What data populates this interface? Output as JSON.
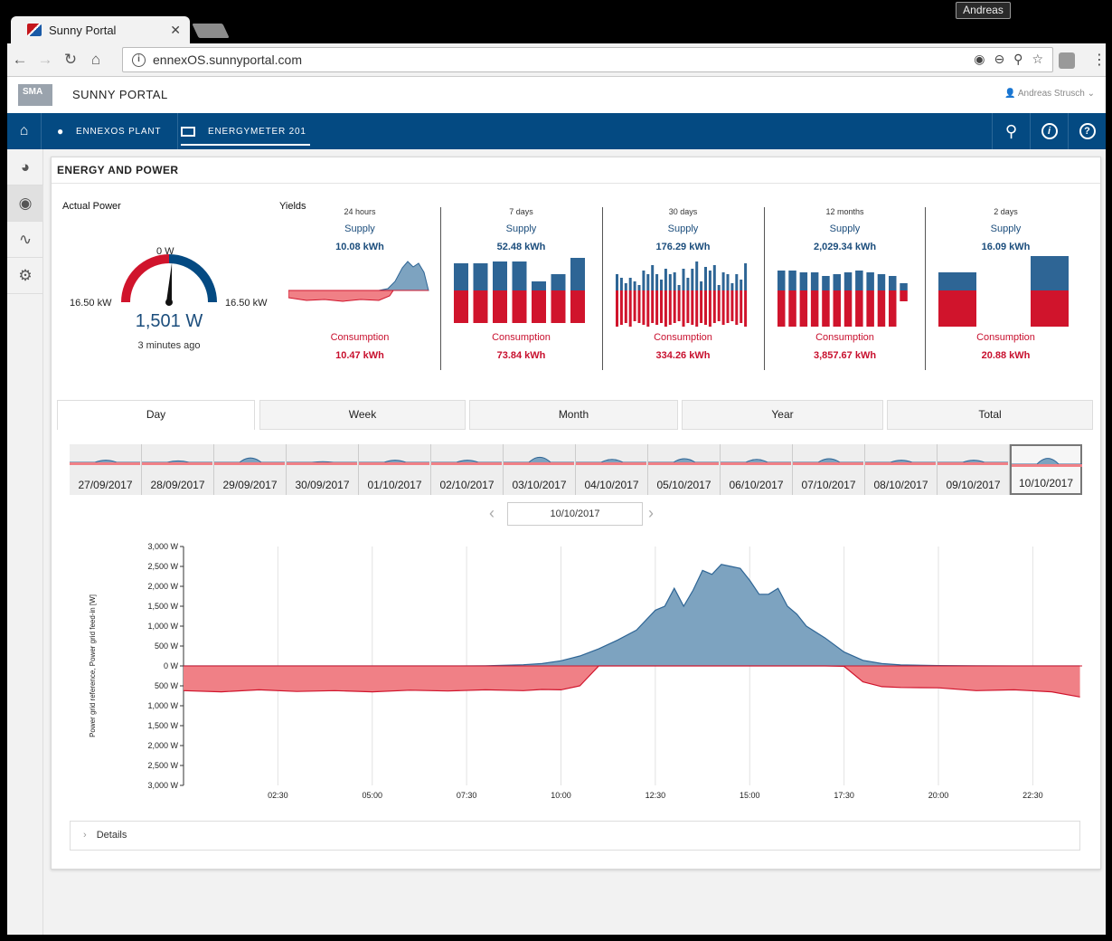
{
  "browser": {
    "tab_title": "Sunny Portal",
    "tab_close": "✕",
    "profile": "Andreas",
    "url": "ennexOS.sunnyportal.com"
  },
  "header": {
    "logo": "SMA",
    "title": "SUNNY PORTAL",
    "user": "Andreas Strusch"
  },
  "navbar": {
    "plant": "ENNEXOS PLANT",
    "device": "ENERGYMETER 201"
  },
  "card": {
    "title": "ENERGY AND POWER",
    "actual_power_label": "Actual Power",
    "yields_label": "Yields"
  },
  "gauge": {
    "zero_label": "0 W",
    "left_label": "16.50 kW",
    "right_label": "16.50 kW",
    "value": "1,501 W",
    "ago": "3 minutes ago",
    "fraction": 0.045
  },
  "yields": [
    {
      "period": "24 hours",
      "supply_label": "Supply",
      "supply": "10.08 kWh",
      "consumption_label": "Consumption",
      "consumption": "10.47 kWh"
    },
    {
      "period": "7 days",
      "supply_label": "Supply",
      "supply": "52.48 kWh",
      "consumption_label": "Consumption",
      "consumption": "73.84 kWh"
    },
    {
      "period": "30 days",
      "supply_label": "Supply",
      "supply": "176.29 kWh",
      "consumption_label": "Consumption",
      "consumption": "334.26 kWh"
    },
    {
      "period": "12 months",
      "supply_label": "Supply",
      "supply": "2,029.34 kWh",
      "consumption_label": "Consumption",
      "consumption": "3,857.67 kWh"
    },
    {
      "period": "2 days",
      "supply_label": "Supply",
      "supply": "16.09 kWh",
      "consumption_label": "Consumption",
      "consumption": "20.88 kWh"
    }
  ],
  "tabs": [
    "Day",
    "Week",
    "Month",
    "Year",
    "Total"
  ],
  "days": [
    "27/09/2017",
    "28/09/2017",
    "29/09/2017",
    "30/09/2017",
    "01/10/2017",
    "02/10/2017",
    "03/10/2017",
    "04/10/2017",
    "05/10/2017",
    "06/10/2017",
    "07/10/2017",
    "08/10/2017",
    "09/10/2017",
    "10/10/2017"
  ],
  "selected_date": "10/10/2017",
  "details_label": "Details",
  "colors": {
    "supply": "#2e6595",
    "supply_fill": "#7da3c0",
    "consumption": "#d0142c",
    "consumption_fill": "#f08086",
    "nav": "#044a82"
  },
  "chart_data": {
    "type": "area",
    "ylabel": "Power grid reference, Power grid feed-in [W]",
    "y_ticks": [
      "3,000 W",
      "2,500 W",
      "2,000 W",
      "1,500 W",
      "1,000 W",
      "500 W",
      "0 W",
      "500 W",
      "1,000 W",
      "1,500 W",
      "2,000 W",
      "2,500 W",
      "3,000 W"
    ],
    "x_ticks": [
      "02:30",
      "05:00",
      "07:30",
      "10:00",
      "12:30",
      "15:00",
      "17:30",
      "20:00",
      "22:30"
    ],
    "ylim": [
      -3000,
      3000
    ],
    "x_hours": [
      0,
      1,
      2,
      3,
      4,
      5,
      6,
      7,
      8,
      9,
      9.5,
      10,
      10.5,
      11,
      11.5,
      12,
      12.5,
      12.75,
      13,
      13.25,
      13.5,
      13.75,
      14,
      14.25,
      14.5,
      14.75,
      15,
      15.25,
      15.5,
      15.75,
      16,
      16.25,
      16.5,
      17,
      17.5,
      18,
      18.5,
      19,
      20,
      21,
      22,
      23,
      23.75
    ],
    "series": [
      {
        "name": "Power grid feed-in",
        "values": [
          0,
          0,
          0,
          0,
          0,
          0,
          0,
          0,
          5,
          30,
          60,
          130,
          250,
          430,
          650,
          900,
          1400,
          1500,
          1950,
          1500,
          1900,
          2400,
          2300,
          2550,
          2500,
          2450,
          2150,
          1800,
          1800,
          1950,
          1500,
          1300,
          1000,
          700,
          350,
          140,
          60,
          25,
          10,
          5,
          0,
          0,
          0
        ]
      },
      {
        "name": "Power grid reference",
        "values": [
          -620,
          -650,
          -600,
          -640,
          -620,
          -650,
          -610,
          -630,
          -600,
          -620,
          -590,
          -600,
          -500,
          0,
          0,
          0,
          0,
          0,
          0,
          0,
          0,
          0,
          0,
          0,
          0,
          0,
          0,
          0,
          0,
          0,
          0,
          0,
          0,
          0,
          -10,
          -400,
          -520,
          -540,
          -550,
          -620,
          -600,
          -650,
          -780
        ]
      }
    ]
  }
}
